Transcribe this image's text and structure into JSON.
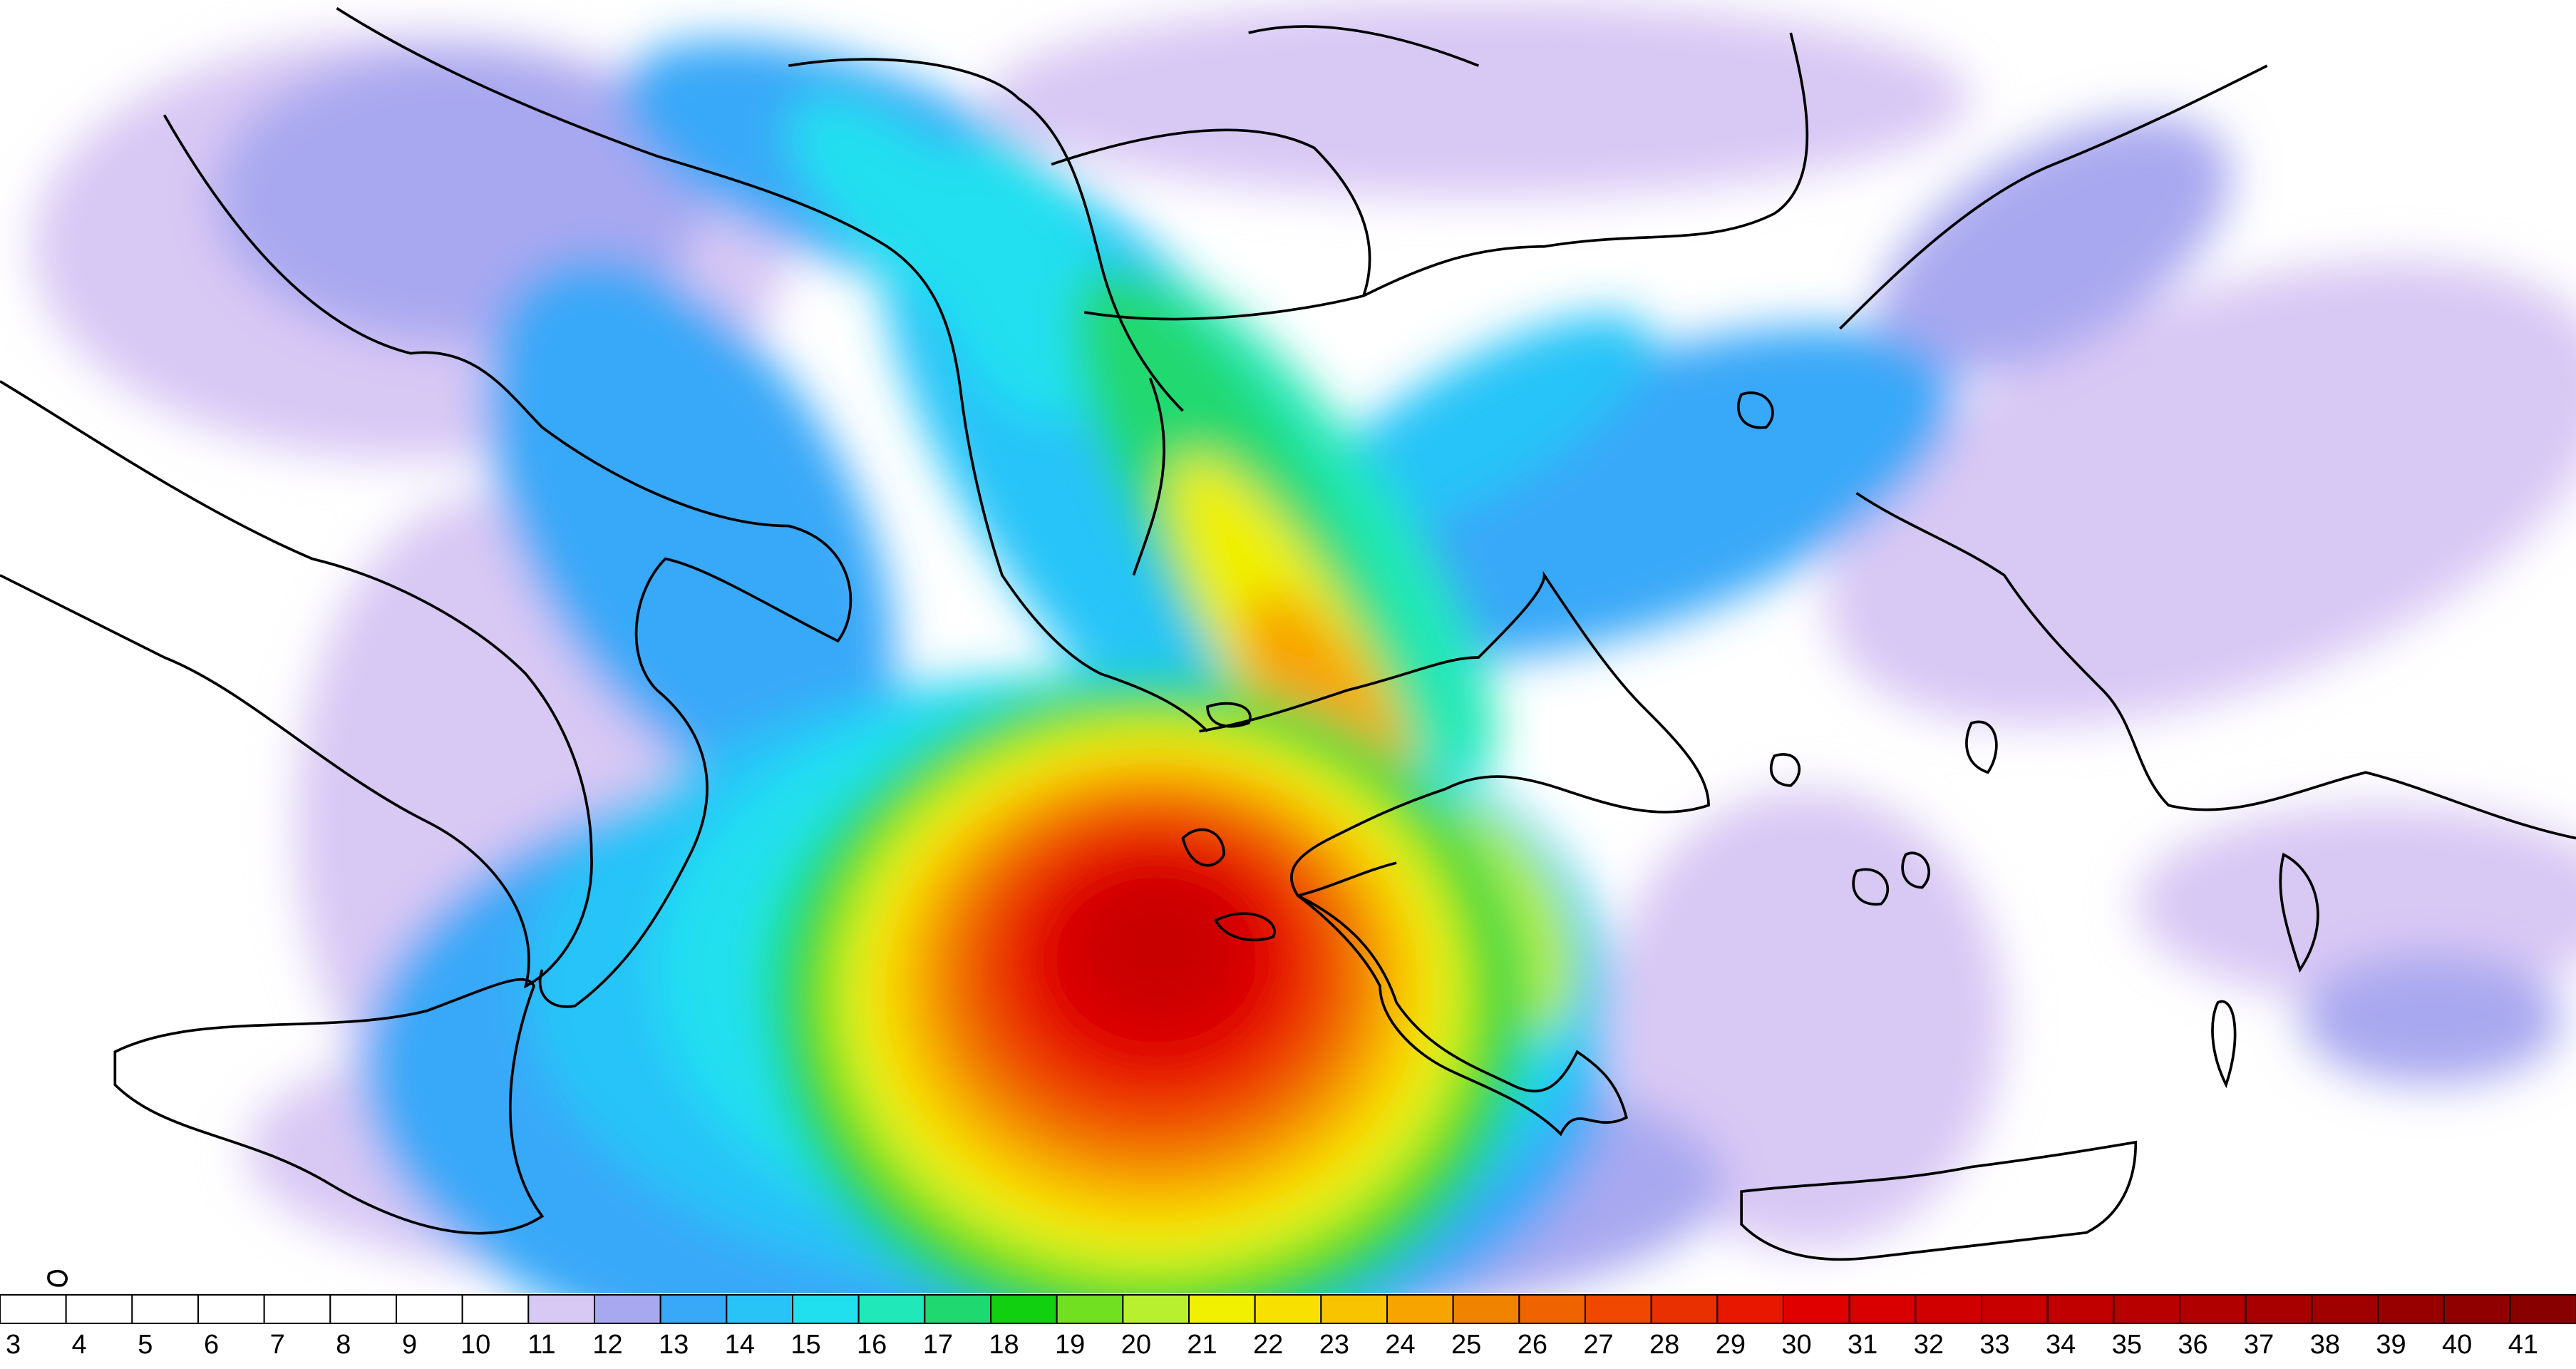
{
  "colorbar": {
    "labels": [
      3,
      4,
      5,
      6,
      7,
      8,
      9,
      10,
      11,
      12,
      13,
      14,
      15,
      16,
      17,
      18,
      19,
      20,
      21,
      22,
      23,
      24,
      25,
      26,
      27,
      28,
      29,
      30,
      31,
      32,
      33,
      34,
      35,
      36,
      37,
      38,
      39,
      40,
      41
    ],
    "colors": [
      "#ffffff",
      "#ffffff",
      "#ffffff",
      "#ffffff",
      "#ffffff",
      "#ffffff",
      "#ffffff",
      "#ffffff",
      "#d8c8f4",
      "#a8a8f0",
      "#38a8f8",
      "#28c4f8",
      "#20e0f0",
      "#20e8b8",
      "#20d870",
      "#10d010",
      "#70e020",
      "#b8f030",
      "#f0f000",
      "#f8e000",
      "#f8c400",
      "#f8a400",
      "#f08400",
      "#f06400",
      "#f04800",
      "#e83000",
      "#e81800",
      "#e00000",
      "#d80000",
      "#d00000",
      "#c80000",
      "#c00000",
      "#b80000",
      "#b00000",
      "#a80000",
      "#a00000",
      "#980000",
      "#900000",
      "#880000"
    ]
  }
}
